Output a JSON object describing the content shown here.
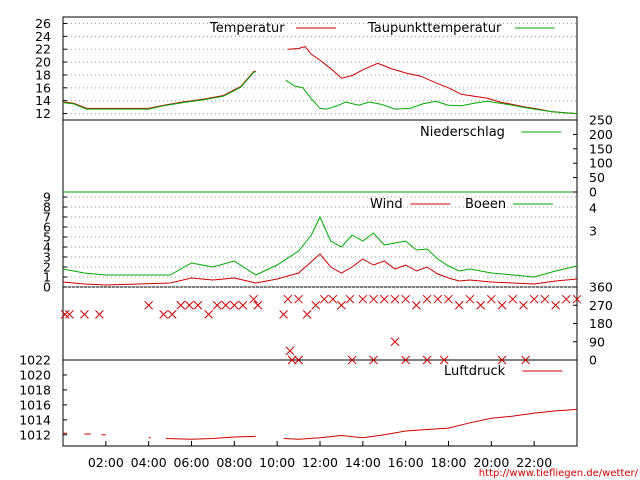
{
  "colors": {
    "red": "#cc0000",
    "green": "#00aa00",
    "olive": "#7f6a00",
    "grid": "#999999",
    "frame": "#000000"
  },
  "source_url": "http://www.tiefliegen.de/wetter/",
  "x_ticks": [
    "02:00",
    "04:00",
    "06:00",
    "08:00",
    "10:00",
    "12:00",
    "14:00",
    "16:00",
    "18:00",
    "20:00",
    "22:00"
  ],
  "chart_data": [
    {
      "type": "line",
      "title": "",
      "legend": [
        "Temperatur",
        "Taupunkttemperatur"
      ],
      "y_ticks": [
        "12",
        "14",
        "16",
        "18",
        "20",
        "22",
        "24",
        "26"
      ],
      "ylim": [
        11,
        27
      ],
      "series": [
        {
          "name": "Temperatur",
          "color": "#cc0000",
          "points": [
            [
              0,
              13.8
            ],
            [
              0.5,
              13.6
            ],
            [
              1.1,
              12.8
            ],
            [
              1.8,
              12.8
            ],
            [
              4.0,
              12.8
            ],
            [
              4.7,
              13.3
            ],
            [
              5.6,
              13.8
            ],
            [
              6.5,
              14.2
            ],
            [
              7.5,
              14.8
            ],
            [
              8.3,
              16.2
            ],
            [
              8.9,
              18.5
            ],
            [
              9.0,
              18.6
            ],
            null,
            [
              10.5,
              22.0
            ],
            [
              11.0,
              22.1
            ],
            [
              11.3,
              22.4
            ],
            [
              11.6,
              21.2
            ],
            [
              12.0,
              20.3
            ],
            [
              12.3,
              19.5
            ],
            [
              12.6,
              18.7
            ],
            [
              13.0,
              17.5
            ],
            [
              13.5,
              17.9
            ],
            [
              14.0,
              18.8
            ],
            [
              14.7,
              19.8
            ],
            [
              15.3,
              19.0
            ],
            [
              16.0,
              18.3
            ],
            [
              16.7,
              17.8
            ],
            [
              17.4,
              16.8
            ],
            [
              18.0,
              16.0
            ],
            [
              18.6,
              15.0
            ],
            [
              19.2,
              14.7
            ],
            [
              19.8,
              14.4
            ],
            [
              20.4,
              13.8
            ],
            [
              21.0,
              13.4
            ],
            [
              21.6,
              13.0
            ],
            [
              22.2,
              12.7
            ],
            [
              22.8,
              12.3
            ],
            [
              23.5,
              12.1
            ],
            [
              24.0,
              12.0
            ]
          ]
        },
        {
          "name": "Taupunkttemperatur",
          "color": "#00aa00",
          "points": [
            [
              0,
              13.7
            ],
            [
              0.5,
              13.5
            ],
            [
              1.1,
              12.7
            ],
            [
              1.8,
              12.7
            ],
            [
              4.0,
              12.7
            ],
            [
              4.7,
              13.2
            ],
            [
              5.6,
              13.7
            ],
            [
              6.5,
              14.1
            ],
            [
              7.5,
              14.7
            ],
            [
              8.3,
              16.1
            ],
            [
              8.9,
              18.4
            ],
            [
              9.0,
              18.5
            ],
            null,
            [
              10.4,
              17.2
            ],
            [
              10.8,
              16.3
            ],
            [
              11.2,
              16.0
            ],
            [
              11.6,
              14.3
            ],
            [
              12.0,
              12.8
            ],
            [
              12.3,
              12.7
            ],
            [
              12.8,
              13.2
            ],
            [
              13.2,
              13.8
            ],
            [
              13.8,
              13.3
            ],
            [
              14.3,
              13.8
            ],
            [
              14.9,
              13.4
            ],
            [
              15.5,
              12.7
            ],
            [
              16.2,
              12.8
            ],
            [
              16.8,
              13.5
            ],
            [
              17.4,
              13.9
            ],
            [
              18.0,
              13.3
            ],
            [
              18.6,
              13.2
            ],
            [
              19.2,
              13.6
            ],
            [
              19.8,
              13.9
            ],
            [
              20.4,
              13.6
            ],
            [
              21.0,
              13.3
            ],
            [
              21.6,
              12.9
            ],
            [
              22.2,
              12.6
            ],
            [
              22.8,
              12.3
            ],
            [
              23.5,
              12.1
            ],
            [
              24.0,
              12.0
            ]
          ]
        }
      ]
    },
    {
      "type": "line",
      "title": "",
      "legend": [
        "Niederschlag"
      ],
      "y_ticks": [
        "0",
        "50",
        "100",
        "150",
        "200",
        "250"
      ],
      "ylim": [
        0,
        250
      ],
      "series": [
        {
          "name": "Niederschlag",
          "color": "#00aa00",
          "points": [
            [
              0,
              0
            ],
            [
              24,
              0
            ]
          ]
        }
      ]
    },
    {
      "type": "line",
      "title": "",
      "legend": [
        "Wind",
        "Boeen"
      ],
      "y_ticks": [
        "0",
        "1",
        "2",
        "3",
        "4",
        "5",
        "6",
        "7",
        "8",
        "9"
      ],
      "y_ticks_right": [
        "3",
        "4"
      ],
      "ylim": [
        0,
        9.5
      ],
      "series": [
        {
          "name": "Wind",
          "color": "#cc0000",
          "points": [
            [
              0,
              0.5
            ],
            [
              1,
              0.3
            ],
            [
              2,
              0.2
            ],
            [
              5,
              0.4
            ],
            [
              6,
              0.9
            ],
            [
              7,
              0.7
            ],
            [
              8,
              0.9
            ],
            [
              9,
              0.4
            ],
            [
              10,
              0.8
            ],
            [
              11,
              1.4
            ],
            [
              12,
              3.3
            ],
            [
              12.5,
              2.0
            ],
            [
              13,
              1.4
            ],
            [
              13.5,
              2.0
            ],
            [
              14,
              2.8
            ],
            [
              14.5,
              2.2
            ],
            [
              15,
              2.6
            ],
            [
              15.5,
              1.8
            ],
            [
              16,
              2.2
            ],
            [
              16.5,
              1.6
            ],
            [
              17,
              2.0
            ],
            [
              17.5,
              1.3
            ],
            [
              18,
              0.9
            ],
            [
              18.5,
              0.6
            ],
            [
              19,
              0.7
            ],
            [
              20,
              0.5
            ],
            [
              21,
              0.4
            ],
            [
              22,
              0.3
            ],
            [
              23,
              0.6
            ],
            [
              24,
              0.8
            ]
          ]
        },
        {
          "name": "Boeen",
          "color": "#00aa00",
          "points": [
            [
              0,
              1.8
            ],
            [
              1,
              1.4
            ],
            [
              2,
              1.2
            ],
            [
              5,
              1.2
            ],
            [
              6,
              2.4
            ],
            [
              7,
              2.0
            ],
            [
              8,
              2.6
            ],
            [
              9,
              1.2
            ],
            [
              10,
              2.2
            ],
            [
              11,
              3.6
            ],
            [
              11.6,
              5.2
            ],
            [
              12,
              7.0
            ],
            [
              12.5,
              4.6
            ],
            [
              13,
              4.0
            ],
            [
              13.5,
              5.2
            ],
            [
              14,
              4.6
            ],
            [
              14.5,
              5.4
            ],
            [
              15,
              4.2
            ],
            [
              15.5,
              4.4
            ],
            [
              16,
              4.6
            ],
            [
              16.5,
              3.7
            ],
            [
              17,
              3.8
            ],
            [
              17.5,
              2.8
            ],
            [
              18,
              2.1
            ],
            [
              18.5,
              1.6
            ],
            [
              19,
              1.8
            ],
            [
              20,
              1.4
            ],
            [
              21,
              1.2
            ],
            [
              22,
              1.0
            ],
            [
              23,
              1.6
            ],
            [
              24,
              2.1
            ]
          ]
        }
      ]
    },
    {
      "type": "scatter",
      "title": "",
      "y_ticks": [
        "0",
        "90",
        "180",
        "270",
        "360"
      ],
      "ylim": [
        0,
        360
      ],
      "series": [
        {
          "name": "",
          "color": "#cc0000",
          "points": [
            [
              0.1,
              225
            ],
            [
              0.3,
              225
            ],
            [
              1,
              225
            ],
            [
              1.7,
              225
            ],
            [
              4,
              270
            ],
            [
              4.7,
              225
            ],
            [
              5.1,
              225
            ],
            [
              5.5,
              270
            ],
            [
              5.9,
              270
            ],
            [
              6.3,
              270
            ],
            [
              6.8,
              225
            ],
            [
              7.2,
              270
            ],
            [
              7.6,
              270
            ],
            [
              8,
              270
            ],
            [
              8.4,
              270
            ],
            [
              8.9,
              300
            ],
            [
              9.1,
              270
            ],
            [
              10.3,
              225
            ],
            [
              10.5,
              300
            ],
            [
              10.7,
              0
            ],
            [
              11.0,
              300
            ],
            [
              11.4,
              225
            ],
            [
              11.8,
              270
            ],
            [
              12.2,
              300
            ],
            [
              12.6,
              300
            ],
            [
              13.0,
              270
            ],
            [
              13.4,
              300
            ],
            [
              14.0,
              300
            ],
            [
              14.5,
              300
            ],
            [
              15.0,
              300
            ],
            [
              15.5,
              300
            ],
            [
              16.0,
              300
            ],
            [
              16.5,
              270
            ],
            [
              17.0,
              300
            ],
            [
              17.5,
              300
            ],
            [
              18.0,
              300
            ],
            [
              18.5,
              270
            ],
            [
              19.0,
              300
            ],
            [
              19.5,
              270
            ],
            [
              20.0,
              300
            ],
            [
              20.5,
              270
            ],
            [
              21.0,
              300
            ],
            [
              21.5,
              270
            ],
            [
              22.0,
              300
            ],
            [
              22.5,
              300
            ],
            [
              23.0,
              270
            ],
            [
              23.5,
              300
            ],
            [
              24.0,
              300
            ],
            [
              10.6,
              45
            ],
            [
              11,
              0
            ],
            [
              13.5,
              0
            ],
            [
              14.5,
              0
            ],
            [
              15.5,
              90
            ],
            [
              16,
              0
            ],
            [
              17,
              0
            ],
            [
              17.8,
              0
            ],
            [
              20.5,
              0
            ],
            [
              21.6,
              0
            ]
          ]
        }
      ]
    },
    {
      "type": "line",
      "title": "",
      "legend": [
        "Luftdruck"
      ],
      "y_ticks": [
        "1012",
        "1014",
        "1016",
        "1018",
        "1020",
        "1022"
      ],
      "ylim": [
        1010.5,
        1022
      ],
      "series": [
        {
          "name": "Luftdruck",
          "color": "#cc0000",
          "points": [
            [
              0,
              1012.2
            ],
            [
              0.2,
              1012.2
            ],
            null,
            [
              1,
              1012.1
            ],
            [
              1.3,
              1012.1
            ],
            null,
            [
              1.8,
              1012.0
            ],
            [
              2.0,
              1012.0
            ],
            null,
            [
              4,
              1011.6
            ],
            [
              4.1,
              1011.6
            ],
            null,
            [
              4.8,
              1011.5
            ],
            [
              6,
              1011.4
            ],
            [
              7,
              1011.5
            ],
            [
              8,
              1011.7
            ],
            [
              9,
              1011.8
            ],
            null,
            [
              10.3,
              1011.5
            ],
            [
              11,
              1011.4
            ],
            [
              12,
              1011.6
            ],
            [
              13,
              1011.9
            ],
            [
              14,
              1011.6
            ],
            [
              15,
              1012.0
            ],
            [
              16,
              1012.5
            ],
            [
              17,
              1012.7
            ],
            [
              18,
              1012.9
            ],
            [
              19,
              1013.6
            ],
            [
              20,
              1014.2
            ],
            [
              21,
              1014.5
            ],
            [
              22,
              1014.9
            ],
            [
              23,
              1015.2
            ],
            [
              24,
              1015.4
            ]
          ]
        }
      ]
    }
  ]
}
